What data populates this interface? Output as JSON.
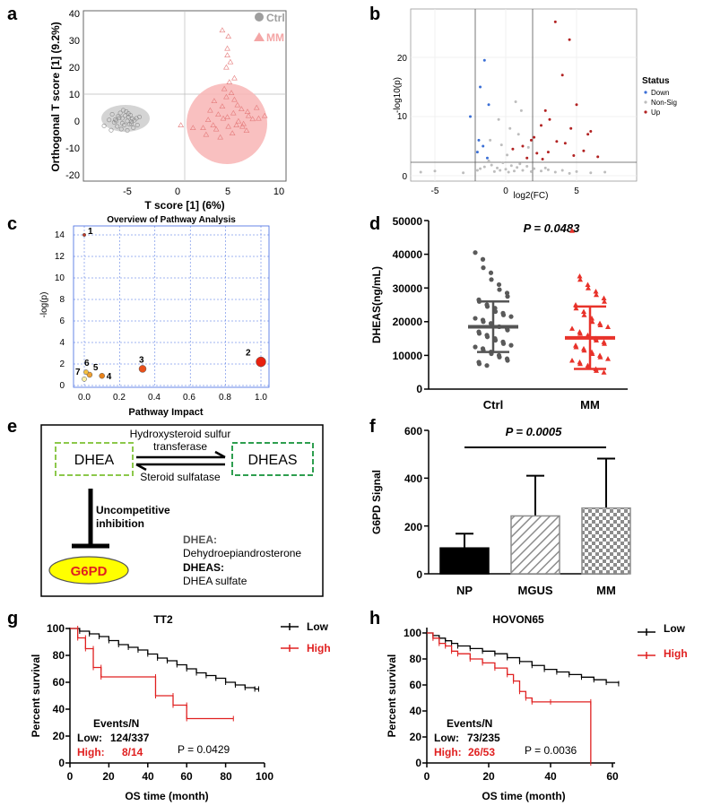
{
  "panels": {
    "a": {
      "letter": "a",
      "xlabel": "T score [1] (6%)",
      "ylabel": "Orthogonal T score [1] (9.2%)",
      "legend": [
        "Ctrl",
        "MM"
      ],
      "xticks": [
        "-5",
        "0",
        "5",
        "10"
      ],
      "yticks": [
        "40",
        "30",
        "20",
        "10",
        "0",
        "-10",
        "-20"
      ]
    },
    "b": {
      "letter": "b",
      "xlabel": "log2(FC)",
      "ylabel": "-log10(p)",
      "legend_title": "Status",
      "legend": [
        "Down",
        "Non-Sig",
        "Up"
      ],
      "xticks": [
        "-5",
        "0",
        "5"
      ],
      "yticks": [
        "20",
        "10",
        "0"
      ]
    },
    "c": {
      "letter": "c",
      "title": "Overview of Pathway Analysis",
      "xlabel": "Pathway Impact",
      "ylabel": "-log(p)",
      "xticks": [
        "0.0",
        "0.2",
        "0.4",
        "0.6",
        "0.8",
        "1.0"
      ],
      "yticks": [
        "14",
        "12",
        "10",
        "8",
        "6",
        "4",
        "2",
        "0"
      ],
      "labels": [
        "1",
        "2",
        "3",
        "4",
        "5",
        "6",
        "7"
      ]
    },
    "d": {
      "letter": "d",
      "ylabel": "DHEAS(ng/mL)",
      "pvalue": "P = 0.0483",
      "categories": [
        "Ctrl",
        "MM"
      ],
      "yticks": [
        "50000",
        "40000",
        "30000",
        "20000",
        "10000",
        "0"
      ]
    },
    "e": {
      "letter": "e",
      "dhea": "DHEA",
      "dheas": "DHEAS",
      "enzyme1_line1": "Hydroxysteroid sulfur",
      "enzyme1_line2": "transferase",
      "enzyme2": "Steroid sulfatase",
      "inhib_line1": "Uncompetitive",
      "inhib_line2": "inhibition",
      "g6pd": "G6PD",
      "def1_term": "DHEA:",
      "def1_text": "Dehydroepiandrosterone",
      "def2_term": "DHEAS:",
      "def2_text": "DHEA sulfate"
    },
    "f": {
      "letter": "f",
      "ylabel": "G6PD Signal",
      "pvalue": "P = 0.0005",
      "categories": [
        "NP",
        "MGUS",
        "MM"
      ],
      "yticks": [
        "600",
        "400",
        "200",
        "0"
      ]
    },
    "g": {
      "letter": "g",
      "title": "TT2",
      "xlabel": "OS time (month)",
      "ylabel": "Percent survival",
      "legend": [
        "Low",
        "High"
      ],
      "events_title": "Events/N",
      "low_label": "Low:",
      "low_value": "124/337",
      "high_label": "High:",
      "high_value": "8/14",
      "pvalue": "P = 0.0429",
      "xticks": [
        "0",
        "20",
        "40",
        "60",
        "80",
        "100"
      ],
      "yticks": [
        "100",
        "80",
        "60",
        "40",
        "20",
        "0"
      ]
    },
    "h": {
      "letter": "h",
      "title": "HOVON65",
      "xlabel": "OS time (month)",
      "ylabel": "Percent survival",
      "legend": [
        "Low",
        "High"
      ],
      "events_title": "Events/N",
      "low_label": "Low:",
      "low_value": "73/235",
      "high_label": "High:",
      "high_value": "26/53",
      "pvalue": "P = 0.0036",
      "xticks": [
        "0",
        "20",
        "40",
        "60"
      ],
      "yticks": [
        "100",
        "80",
        "60",
        "40",
        "20",
        "0"
      ]
    }
  },
  "colors": {
    "ctrl": "#9e9e9e",
    "mm": "#f4a6a6",
    "red": "#e02020",
    "down": "#3b6fd6",
    "up": "#b22222",
    "nonsig": "#bdbdbd",
    "green_light": "#8cc84b",
    "green_dark": "#2e9e4f",
    "yellow": "#ffff00",
    "grid": "#4169e1"
  },
  "chart_data": [
    {
      "panel": "a",
      "type": "scatter",
      "xlabel": "T score [1] (6%)",
      "ylabel": "Orthogonal T score [1] (9.2%)",
      "xlim": [
        -9,
        11
      ],
      "ylim": [
        -22,
        41
      ],
      "series": [
        {
          "name": "Ctrl",
          "x": [
            -6.2,
            -5.8,
            -5.5,
            -5.2,
            -4.9,
            -4.6,
            -4.3,
            -6.5,
            -6.0,
            -5.7,
            -5.3,
            -5.0,
            -4.7,
            -4.4,
            -4.1,
            -6.3,
            -5.9,
            -5.6,
            -5.1,
            -4.8,
            -4.5,
            -5.4,
            -5.0,
            -4.6,
            -6.1,
            -5.5,
            -4.9,
            -6.8,
            -3.8,
            -7.3,
            -6.6,
            -4.0
          ],
          "y": [
            0.5,
            1.2,
            -0.8,
            2.0,
            1.5,
            -1.0,
            0.3,
            2.5,
            -2.0,
            3.0,
            -1.5,
            0.0,
            2.2,
            -2.5,
            1.0,
            -0.5,
            1.8,
            -3.0,
            3.5,
            -1.2,
            0.8,
            4.0,
            -3.5,
            -0.2,
            0.0,
            1.0,
            2.8,
            0.4,
            1.5,
            -1.8,
            -3.4,
            -1.5
          ]
        },
        {
          "name": "MM",
          "x": [
            3.0,
            3.5,
            4.0,
            4.5,
            5.0,
            5.5,
            6.0,
            6.5,
            7.0,
            2.5,
            3.2,
            3.8,
            4.4,
            4.9,
            5.4,
            5.9,
            6.4,
            6.9,
            7.4,
            2.8,
            3.6,
            4.2,
            4.8,
            5.3,
            5.8,
            6.3,
            6.8,
            4.6,
            5.1,
            5.6,
            1.5,
            0.3,
            8.0,
            4.8,
            4.9,
            4.9,
            5.0,
            5.2,
            4.4,
            7.8,
            8.6,
            5.6
          ],
          "y": [
            0.5,
            -1.5,
            2.5,
            1.0,
            -2.0,
            3.0,
            0.0,
            -1.0,
            2.0,
            -2.5,
            4.0,
            -3.0,
            5.5,
            1.5,
            -4.5,
            6.0,
            -2.0,
            3.5,
            0.8,
            -5.0,
            7.5,
            -6.0,
            9.0,
            10.5,
            -1.5,
            4.5,
            -3.5,
            12.0,
            14.5,
            8.0,
            -2.5,
            -1.5,
            1.0,
            20.0,
            24.5,
            27.0,
            31.5,
            22.0,
            33.8,
            5.0,
            2.0,
            16.0
          ]
        }
      ]
    },
    {
      "panel": "b",
      "type": "scatter",
      "xlabel": "log2(FC)",
      "ylabel": "-log10(p)",
      "xlim": [
        -7,
        9
      ],
      "ylim": [
        -1,
        27
      ],
      "thresholds": {
        "x": [
          -2.2,
          2.2
        ],
        "y": 2
      },
      "series": [
        {
          "name": "Down",
          "x": [
            -1.5,
            -1.8,
            -1.2,
            -2.5,
            -1.9,
            -1.6,
            -2.0,
            -1.3
          ],
          "y": [
            19.5,
            15,
            12,
            10,
            6,
            5,
            4,
            3
          ]
        },
        {
          "name": "Up",
          "x": [
            3.5,
            4.5,
            4.0,
            5.0,
            2.8,
            3.1,
            2.5,
            4.6,
            6.0,
            5.8,
            2.0,
            1.8,
            3.6,
            4.2,
            1.2,
            0.5,
            5.5,
            3.0,
            2.2,
            4.8,
            6.5,
            1.5,
            2.6
          ],
          "y": [
            26,
            23,
            17,
            12,
            11,
            9.5,
            8.5,
            8,
            7.5,
            7,
            6.5,
            6,
            5.8,
            5.5,
            5,
            4.5,
            4.2,
            4,
            3.8,
            3.4,
            3.2,
            3,
            2.8
          ]
        },
        {
          "name": "Non-Sig",
          "x": [
            -6,
            -5,
            -3,
            -2,
            -1.8,
            -1.5,
            -1.2,
            -1,
            -0.8,
            -0.6,
            -0.4,
            -0.2,
            0,
            0.2,
            0.4,
            0.6,
            0.8,
            1,
            1.2,
            1.5,
            1.8,
            2,
            2.5,
            3,
            3.5,
            4,
            5,
            6,
            7,
            -0.5,
            0.3,
            0.9,
            1.6,
            -1.1,
            0.1,
            -0.3,
            0.7,
            1.1,
            2.8,
            4.5
          ],
          "y": [
            0.6,
            0.8,
            0.5,
            0.9,
            1.2,
            1.5,
            2.5,
            1.8,
            0.7,
            1.3,
            0.9,
            2.2,
            1.1,
            0.6,
            1.7,
            0.8,
            1.4,
            2.0,
            0.9,
            1.6,
            0.7,
            1.2,
            0.8,
            1.0,
            0.6,
            0.9,
            0.7,
            0.5,
            0.6,
            9.5,
            8.0,
            7.0,
            4.8,
            6.0,
            3.5,
            5.2,
            12.5,
            11.0,
            1.3,
            0.4
          ]
        }
      ]
    },
    {
      "panel": "c",
      "type": "scatter",
      "title": "Overview of Pathway Analysis",
      "xlabel": "Pathway Impact",
      "ylabel": "-log(p)",
      "xlim": [
        -0.05,
        1.05
      ],
      "ylim": [
        0,
        14.5
      ],
      "points": [
        {
          "label": "1",
          "impact": 0.0,
          "logp": 14.0
        },
        {
          "label": "2",
          "impact": 1.0,
          "logp": 2.2
        },
        {
          "label": "3",
          "impact": 0.33,
          "logp": 1.55
        },
        {
          "label": "4",
          "impact": 0.1,
          "logp": 0.9
        },
        {
          "label": "5",
          "impact": 0.03,
          "logp": 1.0
        },
        {
          "label": "6",
          "impact": 0.01,
          "logp": 1.25
        },
        {
          "label": "7",
          "impact": 0.0,
          "logp": 0.6
        }
      ]
    },
    {
      "panel": "d",
      "type": "scatter",
      "ylabel": "DHEAS(ng/mL)",
      "categories": [
        "Ctrl",
        "MM"
      ],
      "ylim": [
        0,
        50000
      ],
      "summary": [
        {
          "name": "Ctrl",
          "mean": 18500,
          "sd_low": 11000,
          "sd_high": 26000
        },
        {
          "name": "MM",
          "mean": 15200,
          "sd_low": 6000,
          "sd_high": 24500
        }
      ],
      "series": [
        {
          "name": "Ctrl",
          "values": [
            40500,
            38500,
            36000,
            34500,
            32500,
            31000,
            29500,
            28500,
            27500,
            26500,
            26000,
            25000,
            24500,
            24000,
            23000,
            22500,
            22000,
            21500,
            21000,
            20500,
            20000,
            19500,
            19000,
            18500,
            18500,
            18000,
            17500,
            17000,
            16500,
            16000,
            15500,
            15000,
            14500,
            14000,
            13500,
            13000,
            12500,
            12000,
            11500,
            11000,
            10500,
            10000,
            9500,
            9000,
            8500,
            8000,
            7500,
            7000
          ]
        },
        {
          "name": "MM",
          "values": [
            47000,
            33500,
            32500,
            31000,
            30000,
            29000,
            28000,
            27000,
            26000,
            25000,
            24000,
            23000,
            22000,
            21000,
            20000,
            19500,
            19000,
            18500,
            18000,
            17000,
            16500,
            16000,
            15500,
            15000,
            14500,
            14000,
            13500,
            13000,
            12500,
            12000,
            11500,
            11000,
            10500,
            10000,
            9500,
            9000,
            8500,
            8000,
            7500,
            7000,
            6500,
            6000,
            5500,
            5000
          ]
        }
      ]
    },
    {
      "panel": "f",
      "type": "bar",
      "ylabel": "G6PD Signal",
      "categories": [
        "NP",
        "MGUS",
        "MM"
      ],
      "ylim": [
        0,
        600
      ],
      "values": [
        108,
        242,
        275
      ],
      "error_upper": [
        168,
        410,
        482
      ]
    },
    {
      "panel": "g",
      "type": "line",
      "title": "TT2",
      "xlabel": "OS time (month)",
      "ylabel": "Percent survival",
      "xlim": [
        0,
        100
      ],
      "ylim": [
        0,
        100
      ],
      "series": [
        {
          "name": "Low",
          "x": [
            0,
            5,
            10,
            15,
            20,
            25,
            30,
            35,
            40,
            45,
            50,
            55,
            60,
            65,
            70,
            75,
            80,
            85,
            90,
            95,
            97
          ],
          "y": [
            100,
            98,
            96,
            94,
            91,
            88,
            86,
            84,
            81,
            78,
            76,
            73,
            70,
            67,
            65,
            63,
            60,
            58,
            56,
            55,
            55
          ]
        },
        {
          "name": "High",
          "x": [
            0,
            4,
            4,
            8,
            8,
            12,
            12,
            16,
            16,
            44,
            44,
            53,
            53,
            60,
            60,
            84
          ],
          "y": [
            100,
            100,
            93,
            93,
            85,
            85,
            71,
            71,
            64,
            64,
            50,
            50,
            43,
            43,
            33,
            33
          ]
        }
      ]
    },
    {
      "panel": "h",
      "type": "line",
      "title": "HOVON65",
      "xlabel": "OS time (month)",
      "ylabel": "Percent survival",
      "xlim": [
        0,
        66
      ],
      "ylim": [
        0,
        104
      ],
      "series": [
        {
          "name": "Low",
          "x": [
            0,
            2,
            4,
            6,
            8,
            10,
            14,
            18,
            22,
            26,
            30,
            34,
            38,
            42,
            46,
            50,
            54,
            58,
            62
          ],
          "y": [
            100,
            98,
            96,
            94,
            92,
            90,
            88,
            86,
            84,
            81,
            78,
            75,
            72,
            70,
            68,
            66,
            64,
            62,
            61
          ]
        },
        {
          "name": "High",
          "x": [
            0,
            2,
            4,
            6,
            8,
            10,
            14,
            18,
            22,
            26,
            28,
            30,
            32,
            34,
            40,
            53,
            53
          ],
          "y": [
            100,
            96,
            92,
            90,
            86,
            84,
            80,
            77,
            73,
            68,
            63,
            55,
            50,
            47,
            47,
            47,
            0
          ]
        }
      ]
    }
  ]
}
